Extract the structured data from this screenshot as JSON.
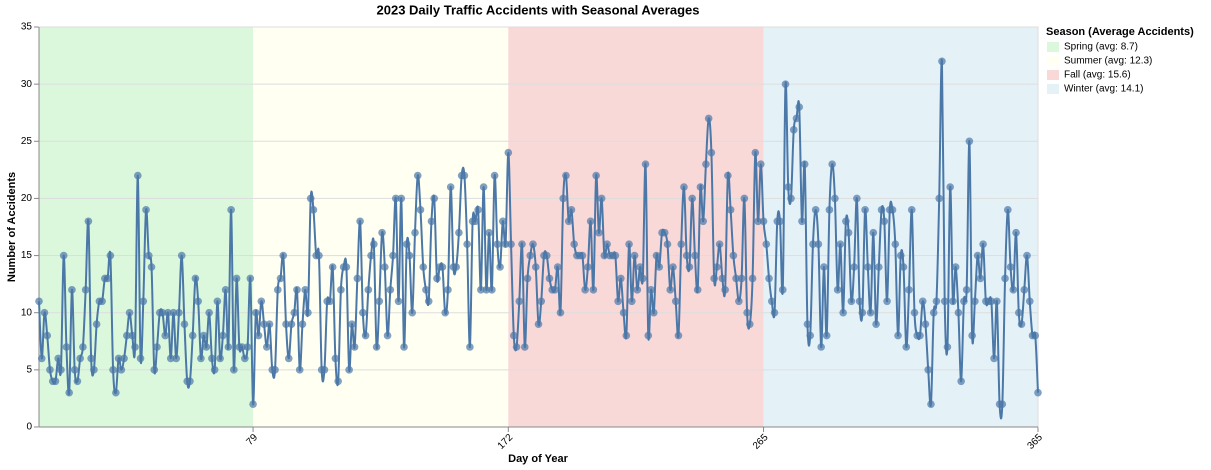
{
  "chart_data": {
    "type": "line",
    "title": "2023 Daily Traffic Accidents with Seasonal Averages",
    "x_label": "Day of Year",
    "y_label": "Number of Accidents",
    "legend_title": "Season (Average Accidents)",
    "seasons": [
      {
        "name": "Spring (avg: 8.7)",
        "start": 1,
        "end": 79,
        "color": "#dbf8dd"
      },
      {
        "name": "Summer (avg: 12.3)",
        "start": 79,
        "end": 172,
        "color": "#fffff2"
      },
      {
        "name": "Fall (avg: 15.6)",
        "start": 172,
        "end": 265,
        "color": "#f9d8d8"
      },
      {
        "name": "Winter (avg: 14.1)",
        "start": 265,
        "end": 365,
        "color": "#e4f2f8"
      }
    ],
    "color": "#4c78a8",
    "x": [
      1,
      2,
      3,
      4,
      5,
      6,
      7,
      8,
      9,
      10,
      11,
      12,
      13,
      14,
      15,
      16,
      17,
      18,
      19,
      20,
      21,
      22,
      23,
      24,
      25,
      26,
      27,
      28,
      29,
      30,
      31,
      32,
      33,
      34,
      35,
      36,
      37,
      38,
      39,
      40,
      41,
      42,
      43,
      44,
      45,
      46,
      47,
      48,
      49,
      50,
      51,
      52,
      53,
      54,
      55,
      56,
      57,
      58,
      59,
      60,
      61,
      62,
      63,
      64,
      65,
      66,
      67,
      68,
      69,
      70,
      71,
      72,
      73,
      74,
      75,
      76,
      77,
      78,
      79,
      80,
      81,
      82,
      83,
      84,
      85,
      86,
      87,
      88,
      89,
      90,
      91,
      92,
      93,
      94,
      95,
      96,
      97,
      98,
      99,
      100,
      101,
      102,
      103,
      104,
      105,
      106,
      107,
      108,
      109,
      110,
      111,
      112,
      113,
      114,
      115,
      116,
      117,
      118,
      119,
      120,
      121,
      122,
      123,
      124,
      125,
      126,
      127,
      128,
      129,
      130,
      131,
      132,
      133,
      134,
      135,
      136,
      137,
      138,
      139,
      140,
      141,
      142,
      143,
      144,
      145,
      146,
      147,
      148,
      149,
      150,
      151,
      152,
      153,
      154,
      155,
      156,
      157,
      158,
      159,
      160,
      161,
      162,
      163,
      164,
      165,
      166,
      167,
      168,
      169,
      170,
      171,
      172,
      173,
      174,
      175,
      176,
      177,
      178,
      179,
      180,
      181,
      182,
      183,
      184,
      185,
      186,
      187,
      188,
      189,
      190,
      191,
      192,
      193,
      194,
      195,
      196,
      197,
      198,
      199,
      200,
      201,
      202,
      203,
      204,
      205,
      206,
      207,
      208,
      209,
      210,
      211,
      212,
      213,
      214,
      215,
      216,
      217,
      218,
      219,
      220,
      221,
      222,
      223,
      224,
      225,
      226,
      227,
      228,
      229,
      230,
      231,
      232,
      233,
      234,
      235,
      236,
      237,
      238,
      239,
      240,
      241,
      242,
      243,
      244,
      245,
      246,
      247,
      248,
      249,
      250,
      251,
      252,
      253,
      254,
      255,
      256,
      257,
      258,
      259,
      260,
      261,
      262,
      263,
      264,
      265,
      266,
      267,
      268,
      269,
      270,
      271,
      272,
      273,
      274,
      275,
      276,
      277,
      278,
      279,
      280,
      281,
      282,
      283,
      284,
      285,
      286,
      287,
      288,
      289,
      290,
      291,
      292,
      293,
      294,
      295,
      296,
      297,
      298,
      299,
      300,
      301,
      302,
      303,
      304,
      305,
      306,
      307,
      308,
      309,
      310,
      311,
      312,
      313,
      314,
      315,
      316,
      317,
      318,
      319,
      320,
      321,
      322,
      323,
      324,
      325,
      326,
      327,
      328,
      329,
      330,
      331,
      332,
      333,
      334,
      335,
      336,
      337,
      338,
      339,
      340,
      341,
      342,
      343,
      344,
      345,
      346,
      347,
      348,
      349,
      350,
      351,
      352,
      353,
      354,
      355,
      356,
      357,
      358,
      359,
      360,
      361,
      362,
      363,
      364,
      365
    ],
    "values": [
      11,
      6,
      10,
      8,
      5,
      4,
      4,
      6,
      5,
      15,
      7,
      3,
      12,
      5,
      4,
      6,
      7,
      12,
      18,
      6,
      5,
      9,
      11,
      11,
      13,
      13,
      15,
      5,
      3,
      6,
      5,
      6,
      8,
      10,
      8,
      7,
      22,
      6,
      11,
      19,
      15,
      14,
      5,
      7,
      10,
      10,
      8,
      10,
      6,
      10,
      6,
      10,
      15,
      9,
      4,
      4,
      8,
      13,
      11,
      6,
      8,
      7,
      10,
      6,
      5,
      11,
      6,
      8,
      12,
      7,
      19,
      5,
      13,
      7,
      7,
      6,
      7,
      13,
      2,
      10,
      8,
      11,
      9,
      7,
      9,
      5,
      5,
      12,
      13,
      15,
      9,
      6,
      9,
      10,
      12,
      5,
      9,
      12,
      10,
      20,
      19,
      15,
      15,
      5,
      5,
      11,
      11,
      14,
      6,
      4,
      12,
      14,
      14,
      5,
      9,
      7,
      13,
      18,
      10,
      8,
      12,
      15,
      16,
      7,
      11,
      17,
      14,
      8,
      12,
      15,
      20,
      11,
      20,
      7,
      16,
      15,
      10,
      17,
      22,
      19,
      14,
      12,
      11,
      18,
      20,
      13,
      14,
      14,
      10,
      12,
      21,
      14,
      14,
      17,
      22,
      22,
      16,
      7,
      18,
      18,
      19,
      12,
      21,
      12,
      17,
      12,
      22,
      16,
      14,
      18,
      16,
      24,
      16,
      8,
      7,
      11,
      16,
      7,
      13,
      15,
      16,
      14,
      9,
      11,
      15,
      15,
      13,
      12,
      12,
      14,
      10,
      20,
      22,
      18,
      19,
      16,
      15,
      15,
      15,
      12,
      14,
      18,
      12,
      22,
      17,
      20,
      15,
      16,
      15,
      15,
      15,
      11,
      13,
      10,
      8,
      16,
      11,
      15,
      12,
      14,
      13,
      23,
      8,
      12,
      10,
      15,
      14,
      17,
      17,
      16,
      12,
      14,
      11,
      8,
      16,
      21,
      15,
      14,
      20,
      15,
      12,
      21,
      18,
      23,
      27,
      24,
      13,
      14,
      16,
      13,
      12,
      22,
      19,
      15,
      13,
      11,
      13,
      20,
      10,
      9,
      13,
      24,
      18,
      23,
      18,
      16,
      13,
      11,
      10,
      18,
      18,
      12,
      30,
      21,
      20,
      26,
      27,
      28,
      18,
      23,
      9,
      8,
      16,
      19,
      16,
      7,
      14,
      8,
      19,
      23,
      20,
      12,
      16,
      10,
      18,
      17,
      11,
      14,
      20,
      11,
      10,
      19,
      14,
      10,
      17,
      9,
      14,
      19,
      18,
      11,
      19,
      19,
      16,
      8,
      15,
      14,
      7,
      12,
      19,
      10,
      8,
      8,
      11,
      9,
      5,
      2,
      10,
      11,
      20,
      32,
      11,
      7,
      21,
      11,
      14,
      10,
      4,
      11,
      12,
      25,
      8,
      11,
      15,
      13,
      16,
      11,
      11,
      11,
      6,
      11,
      2,
      2,
      13,
      19,
      14,
      12,
      17,
      10,
      9,
      12,
      15,
      11,
      8,
      8,
      3
    ],
    "xlim": [
      1,
      365
    ],
    "xticks": [
      79,
      172,
      265,
      365
    ],
    "ylim": [
      0,
      35
    ],
    "yticks": [
      0,
      5,
      10,
      15,
      20,
      25,
      30,
      35
    ],
    "grid": true
  }
}
